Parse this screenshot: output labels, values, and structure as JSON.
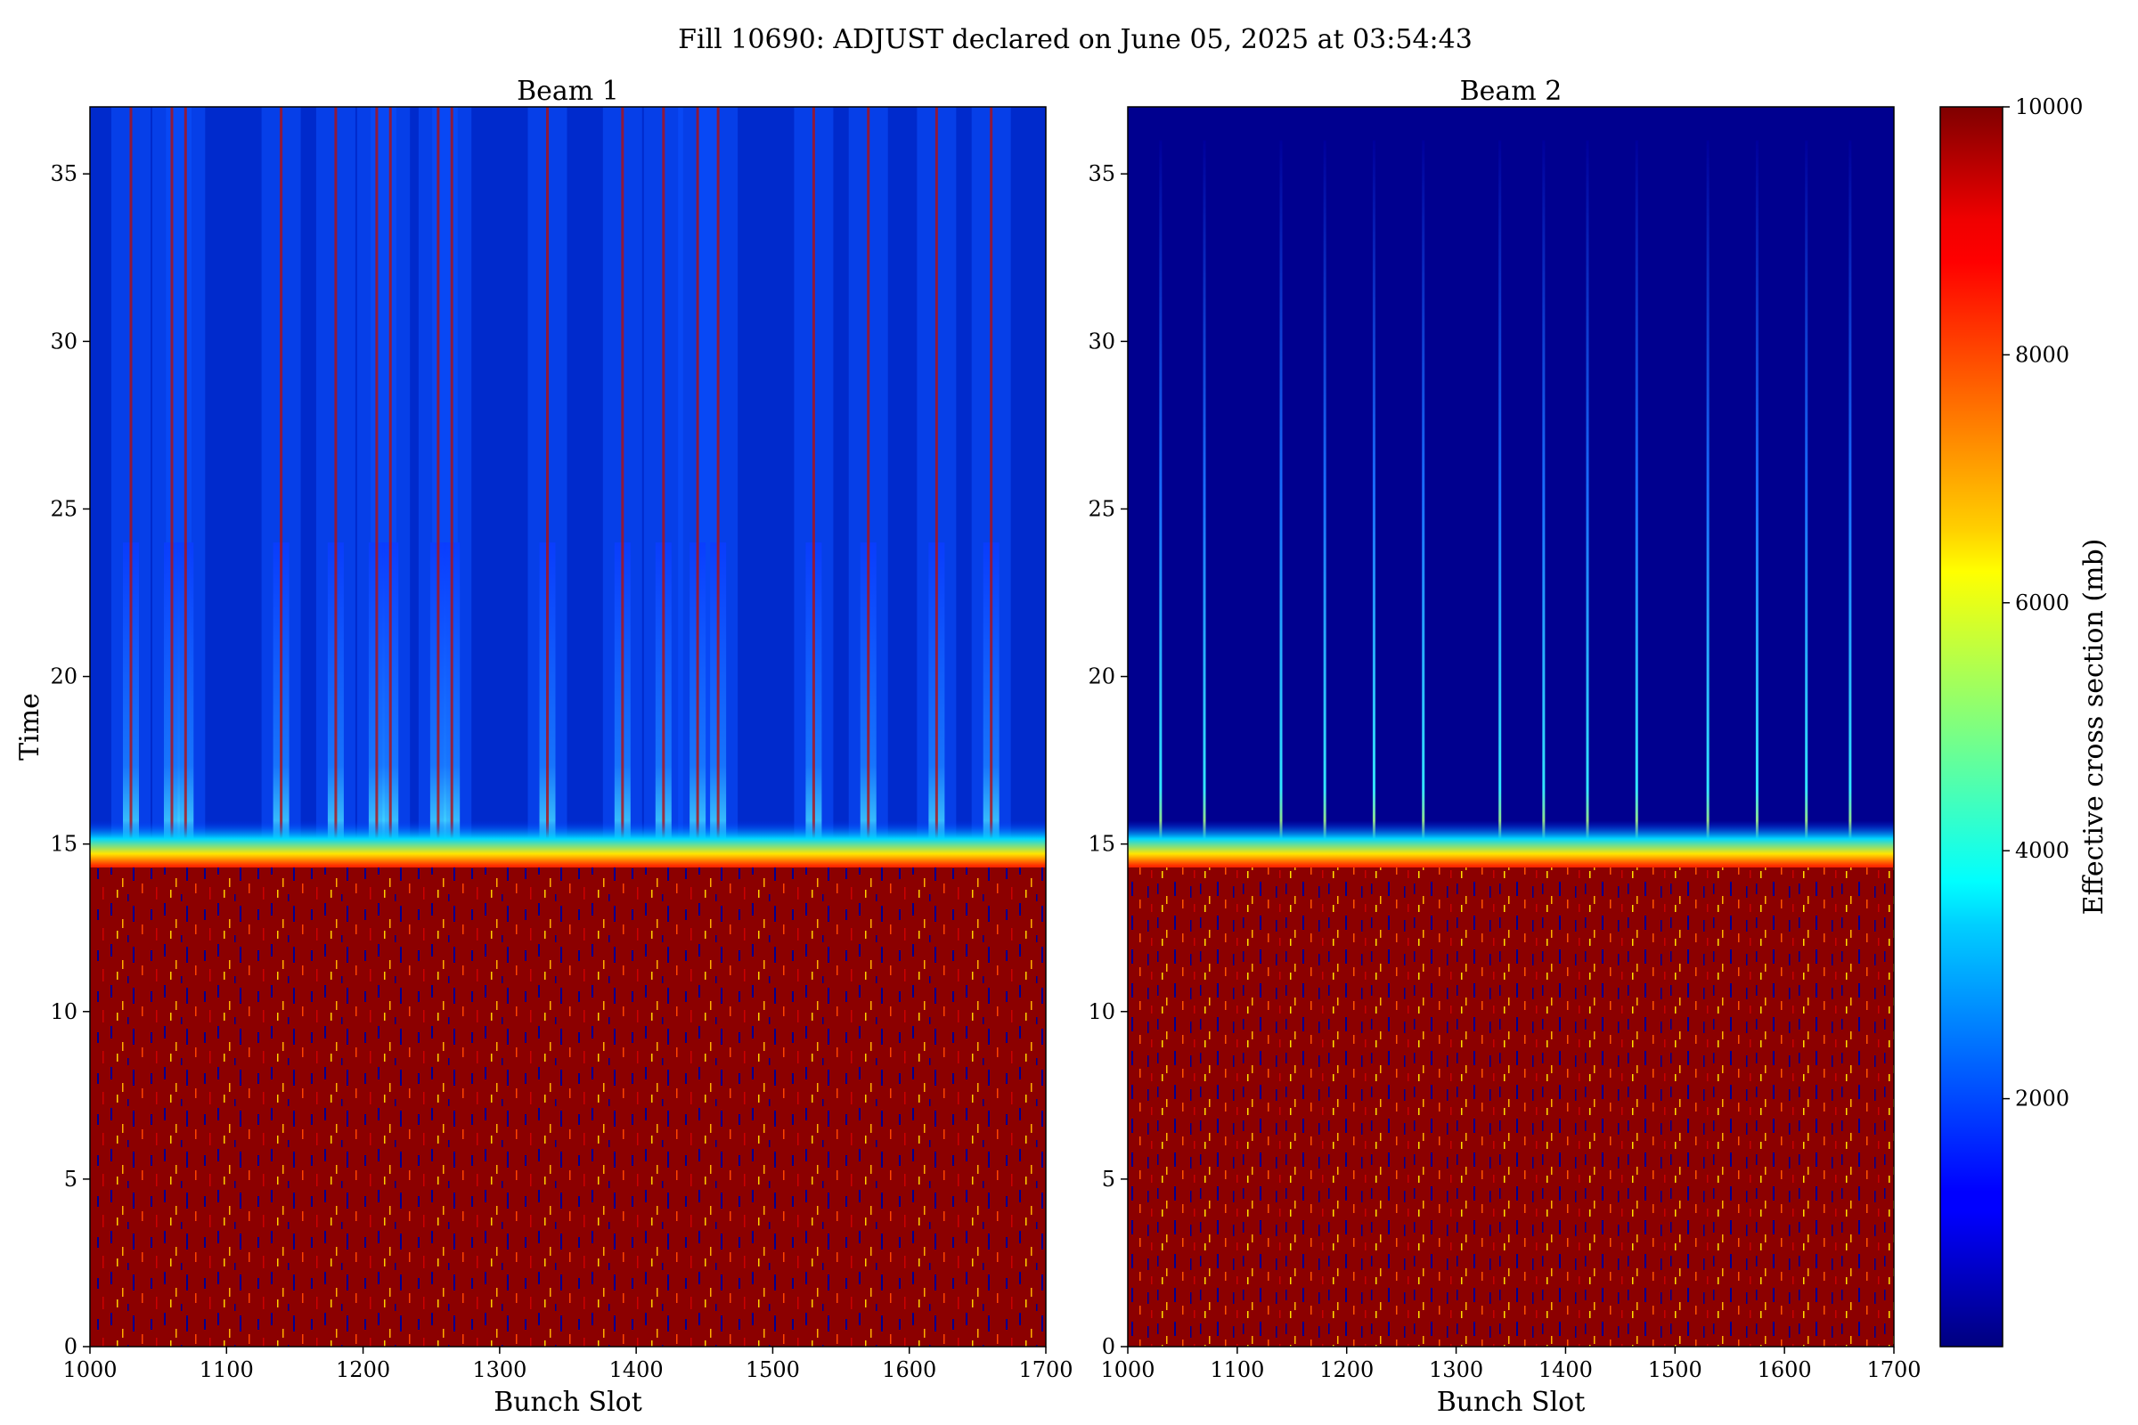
{
  "figure": {
    "title": "Fill 10690: ADJUST declared on June 05, 2025 at 03:54:43"
  },
  "colorbar": {
    "label": "Effective cross section (mb)",
    "colormap": "jet",
    "range": [
      0,
      10000
    ],
    "ticks": [
      "2000",
      "4000",
      "6000",
      "8000",
      "10000"
    ]
  },
  "chart_data": [
    {
      "type": "heatmap",
      "title": "Beam 1",
      "xlabel": "Bunch Slot",
      "ylabel": "Time",
      "xlim": [
        1000,
        1700
      ],
      "ylim": [
        0,
        37
      ],
      "xticks": [
        "1000",
        "1100",
        "1200",
        "1300",
        "1400",
        "1500",
        "1600",
        "1700"
      ],
      "yticks": [
        "0",
        "5",
        "10",
        "15",
        "20",
        "25",
        "30",
        "35"
      ],
      "transition_time": 14.5,
      "value_below_transition": 10000,
      "value_above_transition_background": 1000,
      "bright_columns_near": [
        1030,
        1060,
        1070,
        1140,
        1180,
        1210,
        1220,
        1255,
        1265,
        1335,
        1390,
        1420,
        1445,
        1460,
        1530,
        1570,
        1620,
        1660
      ]
    },
    {
      "type": "heatmap",
      "title": "Beam 2",
      "xlabel": "Bunch Slot",
      "ylabel": "",
      "xlim": [
        1000,
        1700
      ],
      "ylim": [
        0,
        37
      ],
      "xticks": [
        "1000",
        "1100",
        "1200",
        "1300",
        "1400",
        "1500",
        "1600",
        "1700"
      ],
      "yticks": [
        "0",
        "5",
        "10",
        "15",
        "20",
        "25",
        "30",
        "35"
      ],
      "transition_time": 14.5,
      "value_below_transition": 10000,
      "value_above_transition_background": 100,
      "bright_columns_near": [
        1030,
        1070,
        1140,
        1180,
        1225,
        1270,
        1340,
        1380,
        1420,
        1465,
        1530,
        1575,
        1620,
        1660
      ]
    }
  ]
}
